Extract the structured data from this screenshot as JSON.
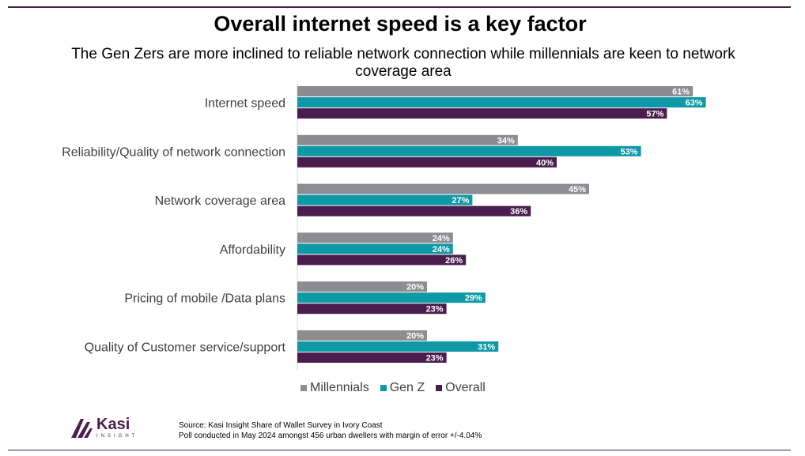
{
  "title": "Overall internet speed is a key factor",
  "subtitle": "The Gen Zers are more inclined to  reliable network connection while millennials are keen to network coverage area",
  "chart_data": {
    "type": "bar",
    "orientation": "horizontal",
    "categories": [
      "Internet speed",
      "Reliability/Quality of network connection",
      "Network coverage area",
      "Affordability",
      "Pricing of mobile /Data plans",
      "Quality of Customer service/support"
    ],
    "series": [
      {
        "name": "Millennials",
        "color": "#8d8c91",
        "values": [
          61,
          34,
          45,
          24,
          20,
          20
        ]
      },
      {
        "name": "Gen Z",
        "color": "#0f99a6",
        "values": [
          63,
          53,
          27,
          24,
          29,
          31
        ]
      },
      {
        "name": "Overall",
        "color": "#4b1d4f",
        "values": [
          57,
          40,
          36,
          26,
          23,
          23
        ]
      }
    ],
    "value_suffix": "%",
    "xlim": [
      0,
      100
    ],
    "grid": false,
    "legend_position": "bottom"
  },
  "logo": {
    "name": "Kasi",
    "sub": "INSIGHT"
  },
  "source": {
    "line1": "Source: Kasi Insight Share of Wallet Survey in Ivory Coast",
    "line2": "Poll conducted in May 2024 amongst 456 urban dwellers with margin of error +/-4.04%"
  }
}
